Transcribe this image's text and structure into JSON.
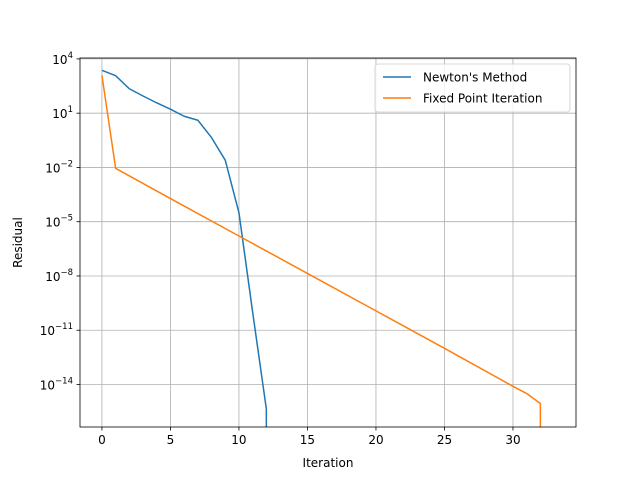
{
  "chart_data": {
    "type": "line",
    "title": "",
    "xlabel": "Iteration",
    "ylabel": "Residual",
    "xlim": [
      -1.6,
      34.6
    ],
    "ylim_exponent": [
      -16.35,
      4.05
    ],
    "y_scale": "log",
    "grid": true,
    "legend_position": "top-right",
    "x_ticks": [
      0,
      5,
      10,
      15,
      20,
      25,
      30
    ],
    "x_tick_labels": [
      "0",
      "5",
      "10",
      "15",
      "20",
      "25",
      "30"
    ],
    "y_tick_exponents": [
      4,
      1,
      -2,
      -5,
      -8,
      -11,
      -14
    ],
    "y_tick_base": "10",
    "y_tick_exp_labels": [
      "4",
      "1",
      "−2",
      "−5",
      "−8",
      "−11",
      "−14"
    ],
    "series": [
      {
        "name": "Newton's Method",
        "color": "#1f77b4",
        "x": [
          0,
          1,
          2,
          3,
          4,
          5,
          6,
          7,
          8,
          9,
          10,
          11,
          12,
          12
        ],
        "log10_y": [
          3.37,
          3.07,
          2.35,
          1.95,
          1.57,
          1.22,
          0.83,
          0.61,
          -0.35,
          -1.6,
          -4.5,
          -10.0,
          -15.35,
          -16.35
        ]
      },
      {
        "name": "Fixed Point Iteration",
        "color": "#ff7f0e",
        "x": [
          0,
          1,
          5,
          10,
          15,
          20,
          25,
          30,
          31,
          32,
          32
        ],
        "log10_y": [
          3.1,
          -2.05,
          -3.72,
          -5.79,
          -7.86,
          -9.93,
          -12.0,
          -14.1,
          -14.5,
          -15.05,
          -16.35
        ]
      }
    ]
  }
}
